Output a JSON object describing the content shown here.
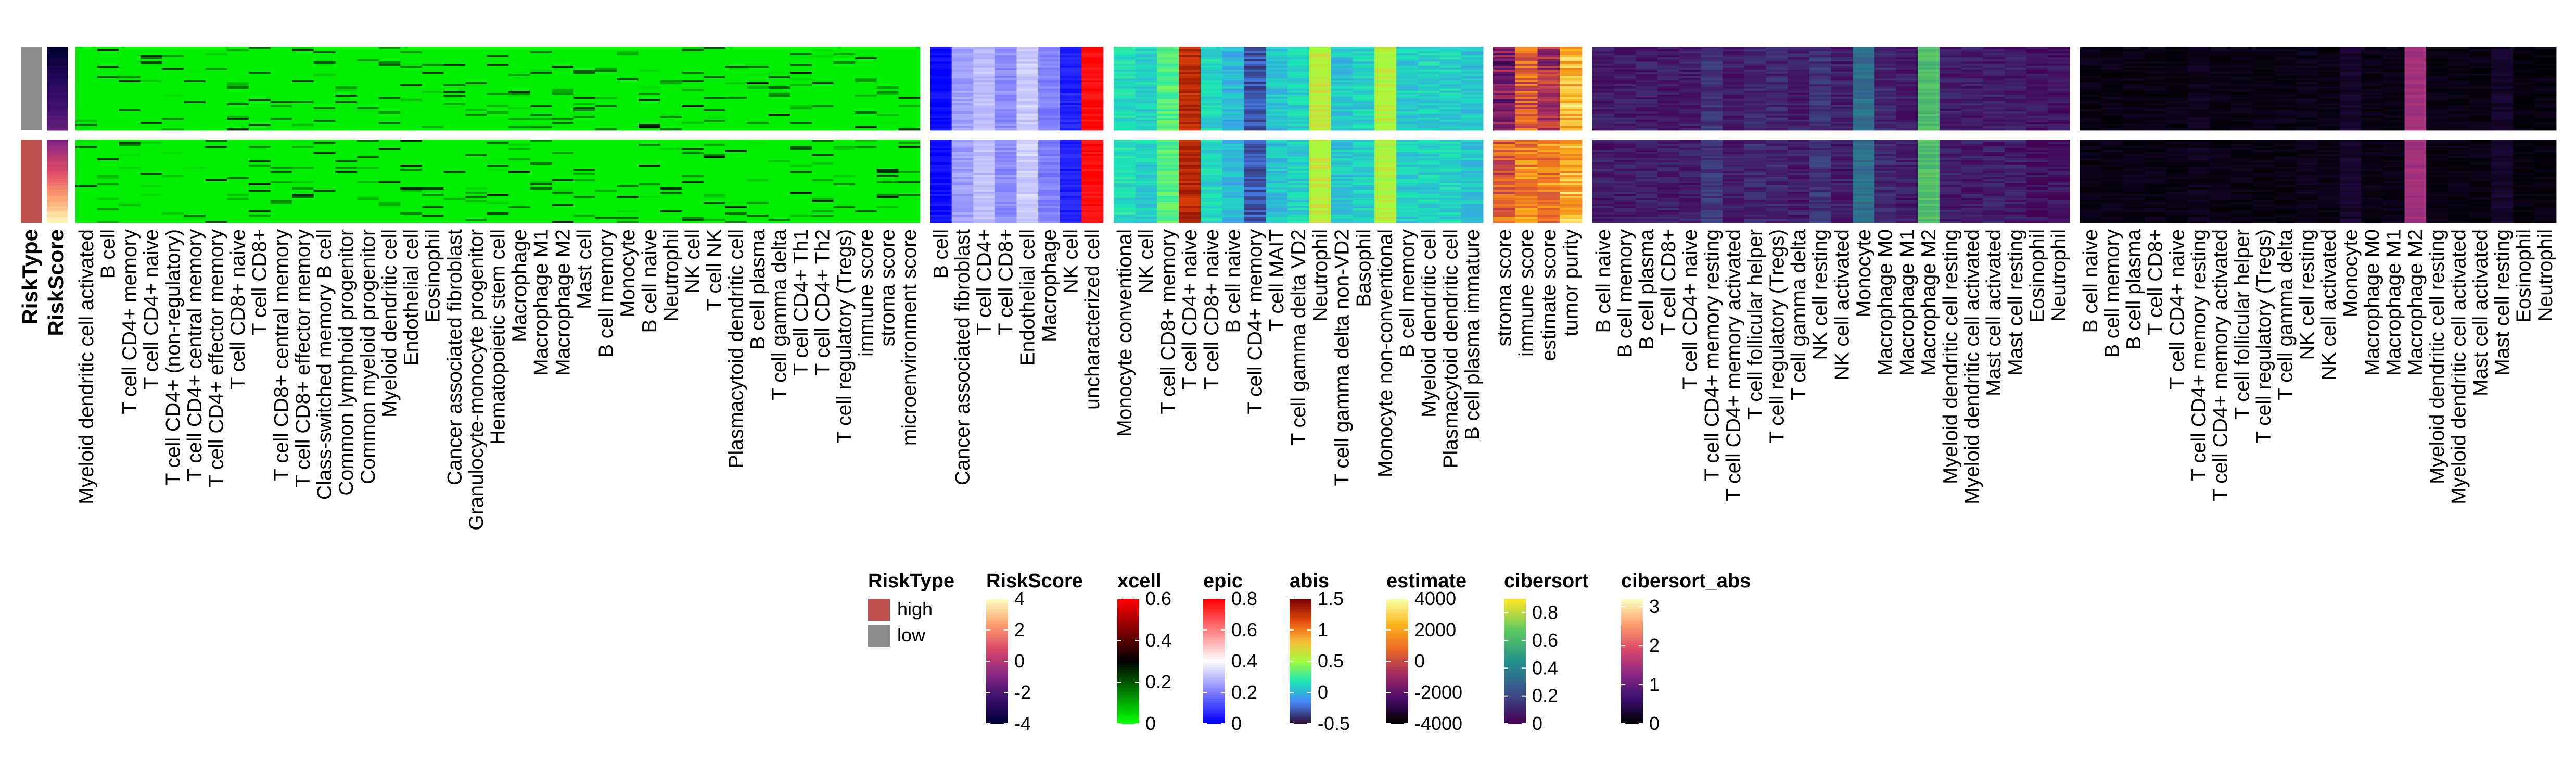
{
  "chart_data": {
    "type": "heatmap",
    "title": "",
    "row_groups": [
      "high",
      "low"
    ],
    "annotations": [
      {
        "name": "RiskType",
        "type": "categorical",
        "levels": [
          {
            "label": "high",
            "color": "#c0504d"
          },
          {
            "label": "low",
            "color": "#8c8c8c"
          }
        ],
        "group_values": [
          "low",
          "high"
        ]
      },
      {
        "name": "RiskScore",
        "type": "continuous",
        "palette": [
          "#000033",
          "#3b0f70",
          "#8c2981",
          "#de4968",
          "#fe9f6d",
          "#fcfdbf"
        ],
        "ticks": [
          "4",
          "2",
          "0",
          "-2",
          "-4"
        ],
        "range": [
          -4,
          4
        ]
      }
    ],
    "panels": [
      {
        "name": "xcell",
        "palette": [
          "#00ff00",
          "#000000",
          "#ff0000"
        ],
        "range": [
          0,
          0.6
        ],
        "ticks": [
          "0.6",
          "0.4",
          "0.2",
          "0"
        ],
        "columns": [
          "Myeloid dendritic cell activated",
          "B cell",
          "T cell CD4+ memory",
          "T cell CD4+ naive",
          "T cell CD4+ (non-regulatory)",
          "T cell CD4+ central memory",
          "T cell CD4+ effector memory",
          "T cell CD8+ naive",
          "T cell CD8+",
          "T cell CD8+ central memory",
          "T cell CD8+ effector memory",
          "Class-switched memory B cell",
          "Common lymphoid progenitor",
          "Common myeloid progenitor",
          "Myeloid dendritic cell",
          "Endothelial cell",
          "Eosinophil",
          "Cancer associated fibroblast",
          "Granulocyte-monocyte progenitor",
          "Hematopoietic stem cell",
          "Macrophage",
          "Macrophage M1",
          "Macrophage M2",
          "Mast cell",
          "B cell memory",
          "Monocyte",
          "B cell naive",
          "Neutrophil",
          "NK cell",
          "T cell NK",
          "Plasmacytoid dendritic cell",
          "B cell plasma",
          "T cell gamma delta",
          "T cell CD4+ Th1",
          "T cell CD4+ Th2",
          "T cell regulatory (Tregs)",
          "immune score",
          "stroma score",
          "microenvironment score"
        ]
      },
      {
        "name": "epic",
        "palette": [
          "#0000ff",
          "#ffffff",
          "#ff0000"
        ],
        "range": [
          0,
          0.8
        ],
        "ticks": [
          "0.8",
          "0.6",
          "0.4",
          "0.2",
          "0"
        ],
        "columns": [
          "B cell",
          "Cancer associated fibroblast",
          "T cell CD4+",
          "T cell CD8+",
          "Endothelial cell",
          "Macrophage",
          "NK cell",
          "uncharacterized cell"
        ]
      },
      {
        "name": "abis",
        "palette": [
          "#30123b",
          "#4686fb",
          "#1be5b5",
          "#a4fc3c",
          "#fbb938",
          "#e4460a",
          "#7a0403"
        ],
        "range": [
          -0.5,
          1.5
        ],
        "ticks": [
          "1.5",
          "1",
          "0.5",
          "0",
          "-0.5"
        ],
        "columns": [
          "Monocyte conventional",
          "NK cell",
          "T cell CD8+ memory",
          "T cell CD4+ naive",
          "T cell CD8+ naive",
          "B cell naive",
          "T cell CD4+ memory",
          "T cell MAIT",
          "T cell gamma delta VD2",
          "Neutrophil",
          "T cell gamma delta non-VD2",
          "Basophil",
          "Monocyte non-conventional",
          "B cell memory",
          "Myeloid dendritic cell",
          "Plasmacytoid dendritic cell",
          "B cell plasma immature"
        ]
      },
      {
        "name": "estimate",
        "palette": [
          "#000000",
          "#4b0c6b",
          "#a52c60",
          "#ed6925",
          "#fbb61a",
          "#fcffa4"
        ],
        "range": [
          -4000,
          4000
        ],
        "ticks": [
          "4000",
          "2000",
          "0",
          "-2000",
          "-4000"
        ],
        "columns": [
          "stroma score",
          "immune score",
          "estimate score",
          "tumor purity"
        ]
      },
      {
        "name": "cibersort",
        "palette": [
          "#440154",
          "#3b528b",
          "#21918c",
          "#5ec962",
          "#fde725"
        ],
        "range": [
          0,
          0.9
        ],
        "ticks": [
          "0.8",
          "0.6",
          "0.4",
          "0.2",
          "0"
        ],
        "columns": [
          "B cell naive",
          "B cell memory",
          "B cell plasma",
          "T cell CD8+",
          "T cell CD4+ naive",
          "T cell CD4+ memory resting",
          "T cell CD4+ memory activated",
          "T cell follicular helper",
          "T cell regulatory (Tregs)",
          "T cell gamma delta",
          "NK cell resting",
          "NK cell activated",
          "Monocyte",
          "Macrophage M0",
          "Macrophage M1",
          "Macrophage M2",
          "Myeloid dendritic cell resting",
          "Myeloid dendritic cell activated",
          "Mast cell activated",
          "Mast cell resting",
          "Eosinophil",
          "Neutrophil"
        ]
      },
      {
        "name": "cibersort_abs",
        "palette": [
          "#000004",
          "#3b0f70",
          "#8c2981",
          "#de4968",
          "#fe9f6d",
          "#fcfdbf"
        ],
        "range": [
          0,
          3.2
        ],
        "ticks": [
          "3",
          "2",
          "1",
          "0"
        ],
        "columns": [
          "B cell naive",
          "B cell memory",
          "B cell plasma",
          "T cell CD8+",
          "T cell CD4+ naive",
          "T cell CD4+ memory resting",
          "T cell CD4+ memory activated",
          "T cell follicular helper",
          "T cell regulatory (Tregs)",
          "T cell gamma delta",
          "NK cell resting",
          "NK cell activated",
          "Monocyte",
          "Macrophage M0",
          "Macrophage M1",
          "Macrophage M2",
          "Myeloid dendritic cell resting",
          "Myeloid dendritic cell activated",
          "Mast cell activated",
          "Mast cell resting",
          "Eosinophil",
          "Neutrophil"
        ]
      }
    ]
  }
}
